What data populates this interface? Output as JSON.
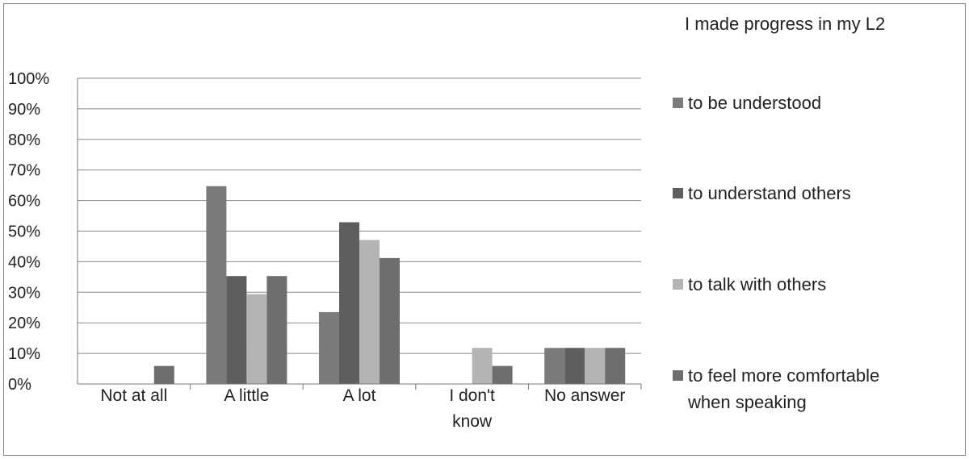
{
  "chart_data": {
    "type": "bar",
    "title": "",
    "xlabel": "",
    "ylabel": "",
    "ylim": [
      0,
      100
    ],
    "y_unit": "%",
    "y_ticks": [
      "0%",
      "10%",
      "20%",
      "30%",
      "40%",
      "50%",
      "60%",
      "70%",
      "80%",
      "90%",
      "100%"
    ],
    "categories": [
      [
        "Not at all"
      ],
      [
        "A little"
      ],
      [
        "A lot"
      ],
      [
        "I don't",
        "know"
      ],
      [
        "No answer"
      ]
    ],
    "legend_title": "I made progress in my L2",
    "legend_position": "right",
    "grid": true,
    "series": [
      {
        "name": [
          "to be understood"
        ],
        "color": "#7b7b7b",
        "values": [
          0,
          64.7,
          23.5,
          0,
          11.8
        ]
      },
      {
        "name": [
          "to understand others"
        ],
        "color": "#5e5e5e",
        "values": [
          0,
          35.3,
          52.9,
          0,
          11.8
        ]
      },
      {
        "name": [
          "to talk with others"
        ],
        "color": "#b4b4b4",
        "values": [
          0,
          29.4,
          47.1,
          11.8,
          11.8
        ]
      },
      {
        "name": [
          "to feel more comfortable",
          "when speaking"
        ],
        "color": "#6e6e6e",
        "values": [
          5.9,
          35.3,
          41.2,
          5.9,
          11.8
        ]
      }
    ]
  }
}
